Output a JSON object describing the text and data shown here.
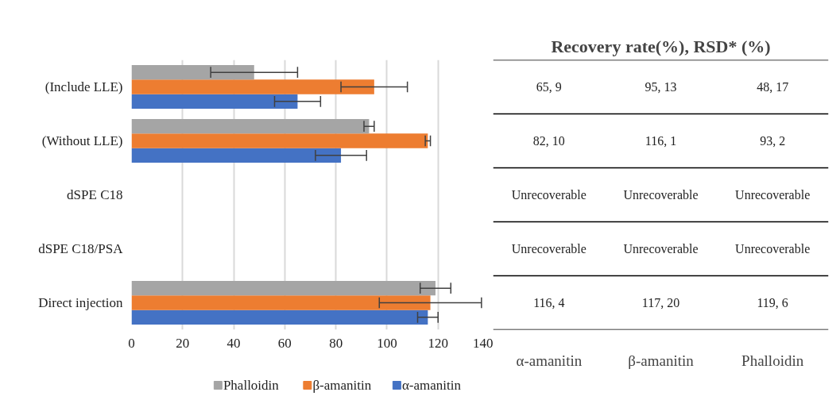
{
  "chart_data": {
    "type": "bar",
    "orientation": "horizontal",
    "categories": [
      "(Include LLE)",
      "(Without LLE)",
      "dSPE C18",
      "dSPE C18/PSA",
      "Direct injection"
    ],
    "series": [
      {
        "name": "α-amanitin",
        "color": "#4472c4",
        "values": [
          65,
          82,
          null,
          null,
          116
        ],
        "errors": [
          9,
          10,
          null,
          null,
          4
        ],
        "value_labels": [
          "65, 9",
          "82, 10",
          "Unrecoverable",
          "Unrecoverable",
          "116, 4"
        ]
      },
      {
        "name": "β-amanitin",
        "color": "#ed7d31",
        "values": [
          95,
          116,
          null,
          null,
          117
        ],
        "errors": [
          13,
          1,
          null,
          null,
          20
        ],
        "value_labels": [
          "95, 13",
          "116, 1",
          "Unrecoverable",
          "Unrecoverable",
          "117, 20"
        ]
      },
      {
        "name": "Phalloidin",
        "color": "#a5a5a5",
        "values": [
          48,
          93,
          null,
          null,
          119
        ],
        "errors": [
          17,
          2,
          null,
          null,
          6
        ],
        "value_labels": [
          "48, 17",
          "93, 2",
          "Unrecoverable",
          "Unrecoverable",
          "119, 6"
        ]
      }
    ],
    "xlim": [
      0,
      140
    ],
    "xticks": [
      0,
      20,
      40,
      60,
      80,
      100,
      120,
      140
    ],
    "grid": "x",
    "legend": "bottom",
    "annotations": [
      "Recovery rate(%), RSD* (%)"
    ]
  }
}
